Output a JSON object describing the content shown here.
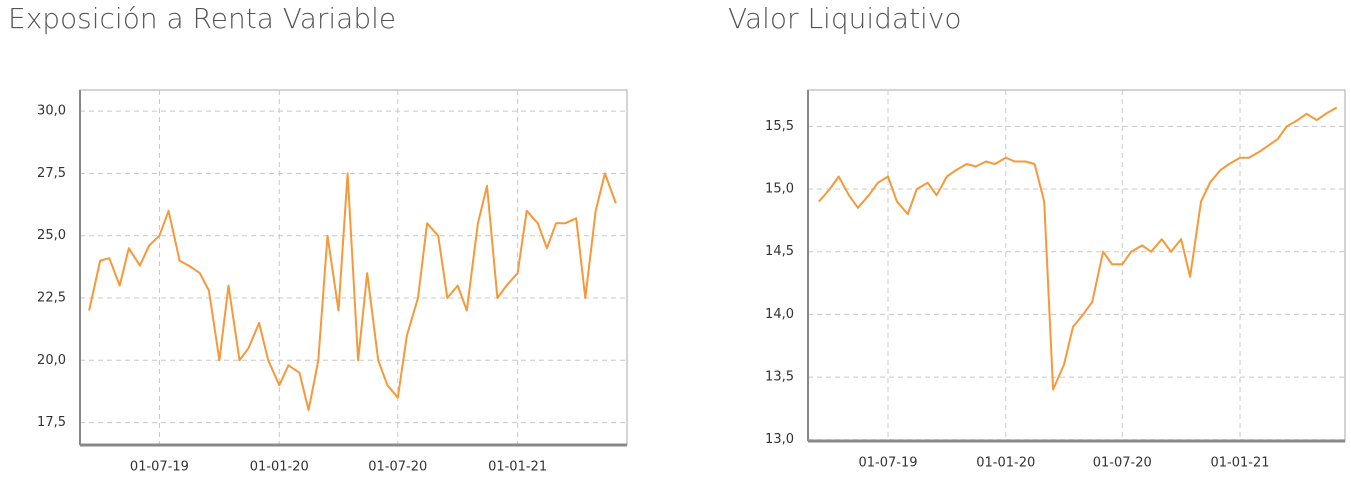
{
  "chart_data": [
    {
      "type": "line",
      "title": "Exposición a Renta Variable",
      "x": [
        "2019-03-15",
        "2019-04-01",
        "2019-04-15",
        "2019-05-01",
        "2019-05-15",
        "2019-06-01",
        "2019-06-15",
        "2019-07-01",
        "2019-07-15",
        "2019-08-01",
        "2019-08-15",
        "2019-09-01",
        "2019-09-15",
        "2019-10-01",
        "2019-10-15",
        "2019-11-01",
        "2019-11-15",
        "2019-12-01",
        "2019-12-15",
        "2020-01-01",
        "2020-01-15",
        "2020-02-01",
        "2020-02-15",
        "2020-03-01",
        "2020-03-15",
        "2020-04-01",
        "2020-04-15",
        "2020-05-01",
        "2020-05-15",
        "2020-06-01",
        "2020-06-15",
        "2020-07-01",
        "2020-07-15",
        "2020-08-01",
        "2020-08-15",
        "2020-09-01",
        "2020-09-15",
        "2020-10-01",
        "2020-10-15",
        "2020-11-01",
        "2020-11-15",
        "2020-12-01",
        "2020-12-15",
        "2021-01-01",
        "2021-01-15",
        "2021-02-01",
        "2021-02-15",
        "2021-03-01",
        "2021-03-15",
        "2021-04-01",
        "2021-04-15",
        "2021-05-01",
        "2021-05-15",
        "2021-06-01"
      ],
      "values": [
        22.0,
        24.0,
        24.1,
        23.0,
        24.5,
        23.8,
        24.6,
        25.0,
        26.0,
        24.0,
        23.8,
        23.5,
        22.8,
        20.0,
        23.0,
        20.0,
        20.5,
        21.5,
        20.0,
        19.0,
        19.8,
        19.5,
        18.0,
        20.0,
        25.0,
        22.0,
        27.5,
        20.0,
        23.5,
        20.0,
        19.0,
        18.5,
        21.0,
        22.5,
        25.5,
        25.0,
        22.5,
        23.0,
        22.0,
        25.5,
        27.0,
        22.5,
        23.0,
        23.5,
        26.0,
        25.5,
        24.5,
        25.5,
        25.5,
        25.7,
        22.5,
        26.0,
        27.5,
        26.3
      ],
      "color": "#f7983a",
      "xlim": [
        "2019-03-01",
        "2021-06-18"
      ],
      "xticks": [
        {
          "value": "2019-07-01",
          "label": "01-07-19"
        },
        {
          "value": "2020-01-01",
          "label": "01-01-20"
        },
        {
          "value": "2020-07-01",
          "label": "01-07-20"
        },
        {
          "value": "2021-01-01",
          "label": "01-01-21"
        }
      ],
      "ylim": [
        16.6,
        30.85
      ],
      "yticks": [
        {
          "value": 17.5,
          "label": "17,5"
        },
        {
          "value": 20,
          "label": "20,0"
        },
        {
          "value": 22.5,
          "label": "22,5"
        },
        {
          "value": 25,
          "label": "25,0"
        },
        {
          "value": 27.5,
          "label": "27,5"
        },
        {
          "value": 30,
          "label": "30,0"
        }
      ],
      "grid": true
    },
    {
      "type": "line",
      "title": "Valor Liquidativo",
      "x": [
        "2019-03-15",
        "2019-04-01",
        "2019-04-15",
        "2019-05-01",
        "2019-05-15",
        "2019-06-01",
        "2019-06-15",
        "2019-07-01",
        "2019-07-15",
        "2019-08-01",
        "2019-08-15",
        "2019-09-01",
        "2019-09-15",
        "2019-10-01",
        "2019-10-15",
        "2019-11-01",
        "2019-11-15",
        "2019-12-01",
        "2019-12-15",
        "2020-01-01",
        "2020-01-15",
        "2020-02-01",
        "2020-02-15",
        "2020-03-01",
        "2020-03-15",
        "2020-04-01",
        "2020-04-15",
        "2020-05-01",
        "2020-05-15",
        "2020-06-01",
        "2020-06-15",
        "2020-07-01",
        "2020-07-15",
        "2020-08-01",
        "2020-08-15",
        "2020-09-01",
        "2020-09-15",
        "2020-10-01",
        "2020-10-15",
        "2020-11-01",
        "2020-11-15",
        "2020-12-01",
        "2020-12-15",
        "2021-01-01",
        "2021-01-15",
        "2021-02-01",
        "2021-02-15",
        "2021-03-01",
        "2021-03-15",
        "2021-04-01",
        "2021-04-15",
        "2021-05-01",
        "2021-05-15",
        "2021-06-01"
      ],
      "values": [
        14.9,
        15.0,
        15.1,
        14.95,
        14.85,
        14.95,
        15.05,
        15.1,
        14.9,
        14.8,
        15.0,
        15.05,
        14.95,
        15.1,
        15.15,
        15.2,
        15.18,
        15.22,
        15.2,
        15.25,
        15.22,
        15.22,
        15.2,
        14.9,
        13.4,
        13.6,
        13.9,
        14.0,
        14.1,
        14.5,
        14.4,
        14.4,
        14.5,
        14.55,
        14.5,
        14.6,
        14.5,
        14.6,
        14.3,
        14.9,
        15.05,
        15.15,
        15.2,
        15.25,
        15.25,
        15.3,
        15.35,
        15.4,
        15.5,
        15.55,
        15.6,
        15.55,
        15.6,
        15.65
      ],
      "color": "#f7983a",
      "xlim": [
        "2019-02-26",
        "2021-06-14"
      ],
      "xticks": [
        {
          "value": "2019-07-01",
          "label": "01-07-19"
        },
        {
          "value": "2020-01-01",
          "label": "01-01-20"
        },
        {
          "value": "2020-07-01",
          "label": "01-07-20"
        },
        {
          "value": "2021-01-01",
          "label": "01-01-21"
        }
      ],
      "ylim": [
        12.99,
        15.79
      ],
      "yticks": [
        {
          "value": 13,
          "label": "13,0"
        },
        {
          "value": 13.5,
          "label": "13,5"
        },
        {
          "value": 14,
          "label": "14,0"
        },
        {
          "value": 14.5,
          "label": "14,5"
        },
        {
          "value": 15,
          "label": "15,0"
        },
        {
          "value": 15.5,
          "label": "15,5"
        }
      ],
      "grid": true
    }
  ]
}
